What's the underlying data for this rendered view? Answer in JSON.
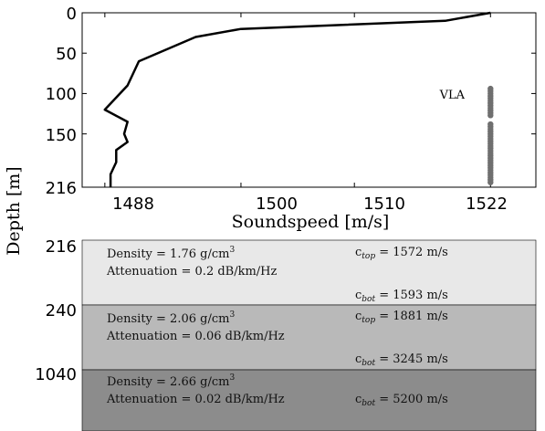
{
  "chart_data": {
    "type": "line",
    "xlabel": "Soundspeed [m/s]",
    "ylabel": "Depth [m]",
    "xlim": [
      1486,
      1526
    ],
    "ylim": [
      0,
      216
    ],
    "x_ticks": [
      "1488",
      "1500",
      "1510",
      "1522"
    ],
    "y_ticks": [
      "0",
      "50",
      "100",
      "150",
      "216"
    ],
    "series": [
      {
        "x": [
          1522,
          1518,
          1500,
          1496,
          1491,
          1490,
          1488,
          1490,
          1489.7,
          1490,
          1489,
          1489,
          1488.5,
          1488.5
        ],
        "y": [
          0,
          10,
          20,
          30,
          60,
          90,
          120,
          135,
          150,
          160,
          170,
          185,
          200,
          216
        ]
      }
    ],
    "vla": {
      "label": "VLA",
      "x": 1522,
      "depths": [
        94,
        97,
        100,
        103,
        106,
        109,
        112,
        115,
        118,
        121,
        124,
        127,
        138,
        141,
        144,
        147,
        150,
        153,
        156,
        159,
        162,
        165,
        168,
        171,
        174,
        177,
        180,
        183,
        186,
        189,
        192,
        195,
        198,
        201,
        204,
        207,
        210
      ]
    },
    "layers": {
      "depth_labels": [
        "216",
        "240",
        "1040"
      ],
      "items": [
        {
          "color": "#e8e8e8",
          "density_prefix": "Density = 1.76 g/cm",
          "density_exp": "3",
          "attenuation": "Attenuation = 0.2 dB/km/Hz",
          "ctop_pre": "c",
          "ctop_sub": "top",
          "ctop_val": " = 1572 m/s",
          "cbot_pre": "c",
          "cbot_sub": "bot",
          "cbot_val": " = 1593 m/s"
        },
        {
          "color": "#b9b9b9",
          "density_prefix": "Density = 2.06 g/cm",
          "density_exp": "3",
          "attenuation": "Attenuation = 0.06 dB/km/Hz",
          "ctop_pre": "c",
          "ctop_sub": "top",
          "ctop_val": " = 1881 m/s",
          "cbot_pre": "c",
          "cbot_sub": "bot",
          "cbot_val": " = 3245 m/s"
        },
        {
          "color": "#8c8c8c",
          "density_prefix": "Density = 2.66 g/cm",
          "density_exp": "3",
          "attenuation": "Attenuation = 0.02 dB/km/Hz",
          "ctop_pre": "",
          "ctop_sub": "",
          "ctop_val": "",
          "cbot_pre": "c",
          "cbot_sub": "bot",
          "cbot_val": " = 5200 m/s"
        }
      ]
    }
  }
}
